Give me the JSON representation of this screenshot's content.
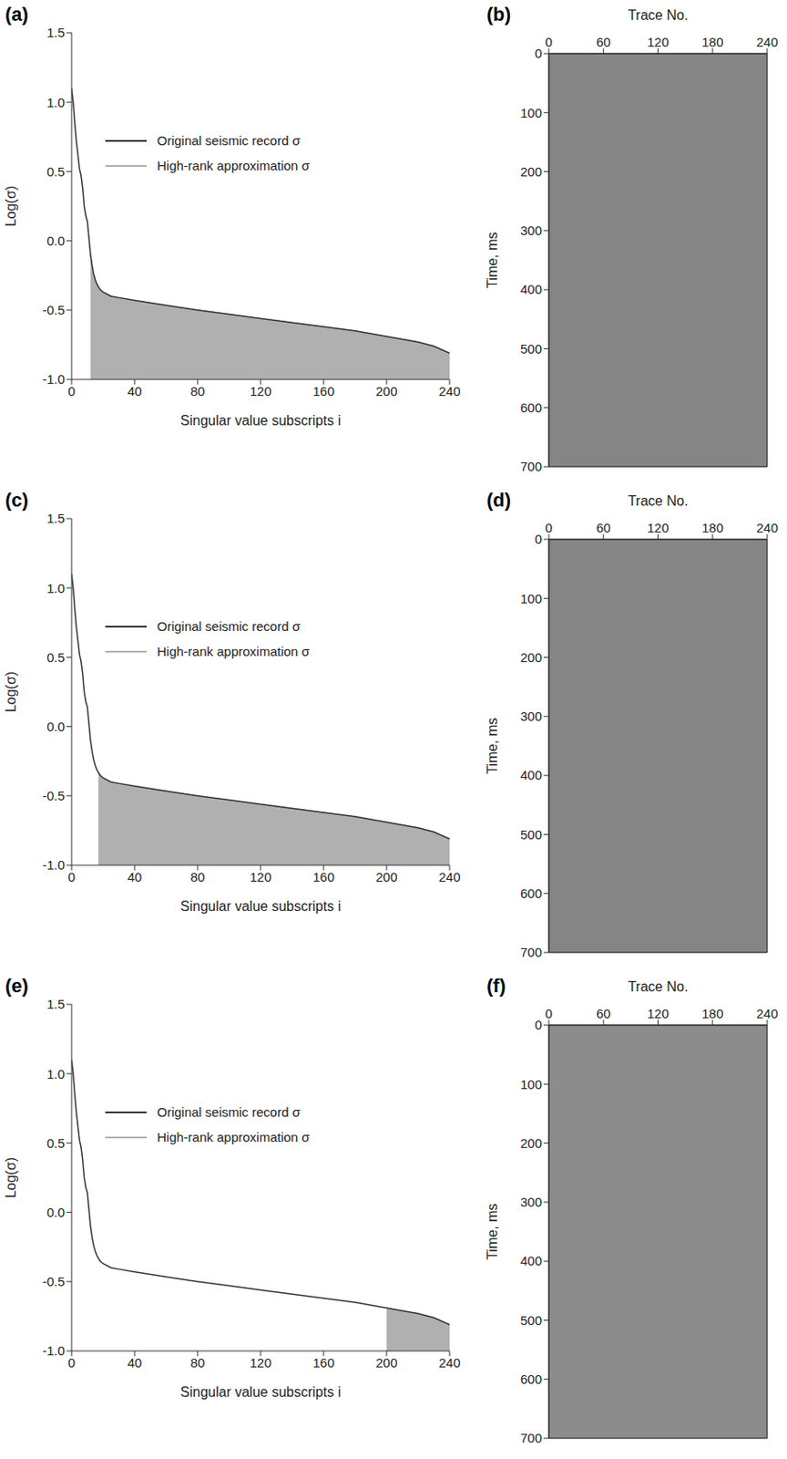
{
  "chart_data": [
    {
      "panel": "(a)",
      "type": "line",
      "xlabel": "Singular value subscripts i",
      "ylabel": "Log(σ)",
      "legend": "upper center",
      "x": [
        0,
        1,
        2,
        3,
        4,
        5,
        6,
        7,
        8,
        9,
        10,
        11,
        12,
        13,
        14,
        15,
        16,
        17,
        18,
        20,
        25,
        30,
        40,
        60,
        80,
        100,
        120,
        140,
        160,
        180,
        200,
        220,
        230,
        240
      ],
      "series": [
        {
          "name": "Original seismic record σ",
          "color": "#333333",
          "type": "line",
          "values": [
            1.1,
            1.0,
            0.85,
            0.72,
            0.62,
            0.52,
            0.47,
            0.38,
            0.25,
            0.18,
            0.14,
            0.02,
            -0.1,
            -0.18,
            -0.24,
            -0.28,
            -0.31,
            -0.33,
            -0.35,
            -0.37,
            -0.4,
            -0.41,
            -0.43,
            -0.465,
            -0.5,
            -0.53,
            -0.56,
            -0.59,
            -0.62,
            -0.65,
            -0.69,
            -0.73,
            -0.76,
            -0.81
          ]
        },
        {
          "name": "High-rank approximation σ",
          "color": "#b0b0b0",
          "type": "area",
          "values": [
            null,
            null,
            null,
            null,
            null,
            null,
            null,
            null,
            null,
            null,
            null,
            null,
            -0.1,
            -0.18,
            -0.24,
            -0.28,
            -0.31,
            -0.33,
            -0.35,
            -0.37,
            -0.4,
            -0.41,
            -0.43,
            -0.465,
            -0.5,
            -0.53,
            -0.56,
            -0.59,
            -0.62,
            -0.65,
            -0.69,
            -0.73,
            -0.76,
            -0.81
          ]
        }
      ],
      "xlim": [
        0,
        240
      ],
      "xticks": [
        0,
        40,
        80,
        120,
        160,
        200,
        240
      ],
      "ylim": [
        -1,
        1.5
      ],
      "yticks": [
        {
          "value": -1,
          "label": "-1.0"
        },
        -0.5,
        {
          "value": 0,
          "label": "0.0"
        },
        0.5,
        {
          "value": 1,
          "label": "1.0"
        },
        1.5
      ]
    },
    {
      "panel": "(b)",
      "type": "image",
      "xlabel": "Trace No.",
      "ylabel": "Time, ms",
      "color": "#858585",
      "xlim": [
        0,
        240
      ],
      "xticks": [
        0,
        60,
        120,
        180,
        240
      ],
      "ylim": [
        0,
        700
      ],
      "yticks": [
        0,
        100,
        200,
        300,
        400,
        500,
        600,
        700
      ]
    },
    {
      "panel": "(c)",
      "type": "line",
      "xlabel": "Singular value subscripts i",
      "ylabel": "Log(σ)",
      "legend": "upper center",
      "x": [
        0,
        1,
        2,
        3,
        4,
        5,
        6,
        7,
        8,
        9,
        10,
        11,
        12,
        13,
        14,
        15,
        16,
        17,
        18,
        20,
        25,
        30,
        40,
        60,
        80,
        100,
        120,
        140,
        160,
        180,
        200,
        220,
        230,
        240
      ],
      "series": [
        {
          "name": "Original seismic record σ",
          "color": "#333333",
          "type": "line",
          "values": [
            1.1,
            1.0,
            0.85,
            0.72,
            0.62,
            0.52,
            0.47,
            0.38,
            0.25,
            0.18,
            0.14,
            0.02,
            -0.1,
            -0.18,
            -0.24,
            -0.28,
            -0.31,
            -0.33,
            -0.35,
            -0.37,
            -0.4,
            -0.41,
            -0.43,
            -0.465,
            -0.5,
            -0.53,
            -0.56,
            -0.59,
            -0.62,
            -0.65,
            -0.69,
            -0.73,
            -0.76,
            -0.81
          ]
        },
        {
          "name": "High-rank approximation σ",
          "color": "#b0b0b0",
          "type": "area",
          "values": [
            null,
            null,
            null,
            null,
            null,
            null,
            null,
            null,
            null,
            null,
            null,
            null,
            null,
            null,
            null,
            null,
            null,
            -0.33,
            -0.35,
            -0.37,
            -0.4,
            -0.41,
            -0.43,
            -0.465,
            -0.5,
            -0.53,
            -0.56,
            -0.59,
            -0.62,
            -0.65,
            -0.69,
            -0.73,
            -0.76,
            -0.81
          ]
        }
      ],
      "xlim": [
        0,
        240
      ],
      "xticks": [
        0,
        40,
        80,
        120,
        160,
        200,
        240
      ],
      "ylim": [
        -1,
        1.5
      ],
      "yticks": [
        {
          "value": -1,
          "label": "-1.0"
        },
        -0.5,
        {
          "value": 0,
          "label": "0.0"
        },
        0.5,
        {
          "value": 1,
          "label": "1.0"
        },
        1.5
      ]
    },
    {
      "panel": "(d)",
      "type": "image",
      "xlabel": "Trace No.",
      "ylabel": "Time, ms",
      "color": "#858585",
      "xlim": [
        0,
        240
      ],
      "xticks": [
        0,
        60,
        120,
        180,
        240
      ],
      "ylim": [
        0,
        700
      ],
      "yticks": [
        0,
        100,
        200,
        300,
        400,
        500,
        600,
        700
      ]
    },
    {
      "panel": "(e)",
      "type": "line",
      "xlabel": "Singular value subscripts i",
      "ylabel": "Log(σ)",
      "legend": "upper center",
      "x": [
        0,
        1,
        2,
        3,
        4,
        5,
        6,
        7,
        8,
        9,
        10,
        11,
        12,
        13,
        14,
        15,
        16,
        17,
        18,
        20,
        25,
        30,
        40,
        60,
        80,
        100,
        120,
        140,
        160,
        180,
        200,
        220,
        230,
        240
      ],
      "series": [
        {
          "name": "Original seismic record σ",
          "color": "#333333",
          "type": "line",
          "values": [
            1.1,
            1.0,
            0.85,
            0.72,
            0.62,
            0.52,
            0.47,
            0.38,
            0.25,
            0.18,
            0.14,
            0.02,
            -0.1,
            -0.18,
            -0.24,
            -0.28,
            -0.31,
            -0.33,
            -0.35,
            -0.37,
            -0.4,
            -0.41,
            -0.43,
            -0.465,
            -0.5,
            -0.53,
            -0.56,
            -0.59,
            -0.62,
            -0.65,
            -0.69,
            -0.73,
            -0.76,
            -0.81
          ]
        },
        {
          "name": "High-rank approximation σ",
          "color": "#b0b0b0",
          "type": "area",
          "values": [
            null,
            null,
            null,
            null,
            null,
            null,
            null,
            null,
            null,
            null,
            null,
            null,
            null,
            null,
            null,
            null,
            null,
            null,
            null,
            null,
            null,
            null,
            null,
            null,
            null,
            null,
            null,
            null,
            null,
            null,
            -0.69,
            -0.73,
            -0.76,
            -0.81
          ]
        }
      ],
      "xlim": [
        0,
        240
      ],
      "xticks": [
        0,
        40,
        80,
        120,
        160,
        200,
        240
      ],
      "ylim": [
        -1,
        1.5
      ],
      "yticks": [
        {
          "value": -1,
          "label": "-1.0"
        },
        -0.5,
        {
          "value": 0,
          "label": "0.0"
        },
        0.5,
        {
          "value": 1,
          "label": "1.0"
        },
        1.5
      ]
    },
    {
      "panel": "(f)",
      "type": "image",
      "xlabel": "Trace No.",
      "ylabel": "Time, ms",
      "color": "#8c8c8c",
      "xlim": [
        0,
        240
      ],
      "xticks": [
        0,
        60,
        120,
        180,
        240
      ],
      "ylim": [
        0,
        700
      ],
      "yticks": [
        0,
        100,
        200,
        300,
        400,
        500,
        600,
        700
      ]
    }
  ]
}
